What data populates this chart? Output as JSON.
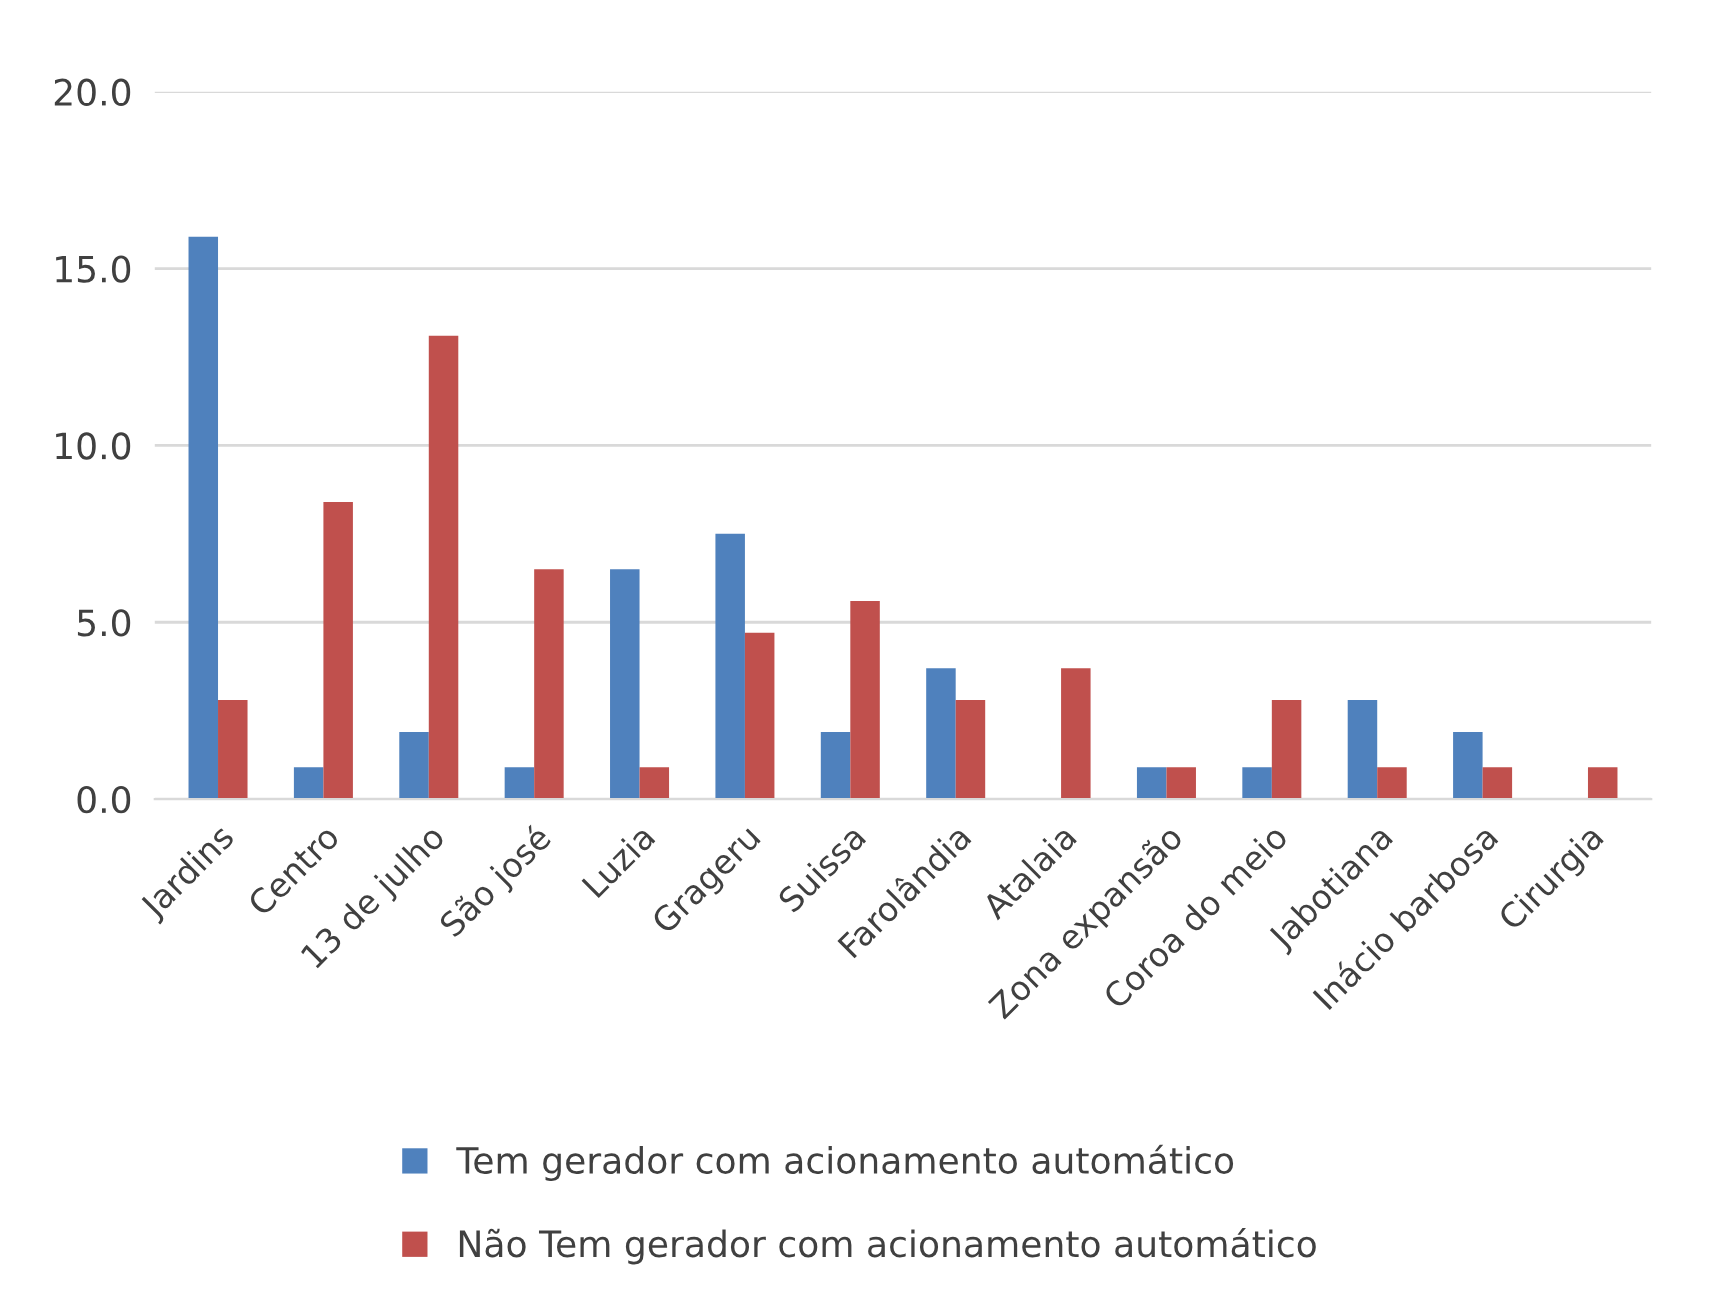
{
  "chart_data": {
    "type": "bar",
    "categories": [
      "Jardins",
      "Centro",
      "13 de julho",
      "São josé",
      "Luzia",
      "Grageru",
      "Suissa",
      "Farolândia",
      "Atalaia",
      "Zona expansão",
      "Coroa do meio",
      "Jabotiana",
      "Inácio barbosa",
      "Cirurgia"
    ],
    "series": [
      {
        "name": "Tem gerador com acionamento automático",
        "color": "#4f81bd",
        "values": [
          15.9,
          0.9,
          1.9,
          0.9,
          6.5,
          7.5,
          1.9,
          3.7,
          0.0,
          0.9,
          0.9,
          2.8,
          1.9,
          0.0
        ]
      },
      {
        "name": "Não Tem gerador com acionamento automático",
        "color": "#c0504d",
        "values": [
          2.8,
          8.4,
          13.1,
          6.5,
          0.9,
          4.7,
          5.6,
          2.8,
          3.7,
          0.9,
          2.8,
          0.9,
          0.9,
          0.9
        ]
      }
    ],
    "ylim": [
      0,
      20
    ],
    "yticks": [
      {
        "value": 0,
        "label": "0.0"
      },
      {
        "value": 5,
        "label": "5.0"
      },
      {
        "value": 10,
        "label": "10.0"
      },
      {
        "value": 15,
        "label": "15.0"
      },
      {
        "value": 20,
        "label": "20.0"
      }
    ],
    "grid": "y",
    "legend": "bottom"
  }
}
